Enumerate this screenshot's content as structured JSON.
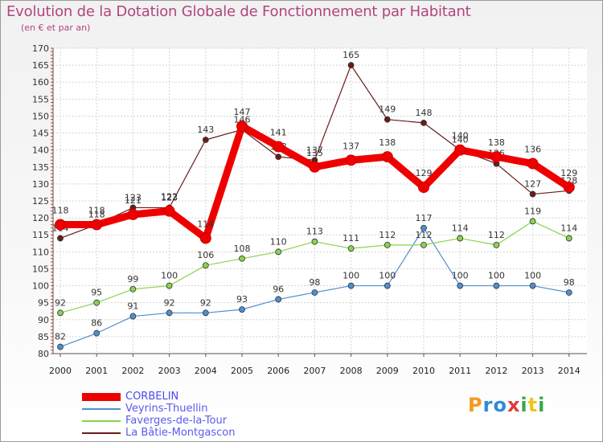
{
  "header": {
    "title": "Evolution de la Dotation Globale de Fonctionnement par Habitant",
    "subtitle": "(en € et par an)"
  },
  "logo": {
    "letters": [
      "P",
      "r",
      "o",
      "x",
      "i",
      "t",
      "i"
    ],
    "colors": [
      "#f39a1e",
      "#2e8bd6",
      "#2e8bd6",
      "#e23b3b",
      "#37a84a",
      "#f3c21e",
      "#37a84a"
    ]
  },
  "chart_data": {
    "type": "line",
    "title": "Evolution de la Dotation Globale de Fonctionnement par Habitant",
    "ylabel": "(en € et par an)",
    "xlabel": "",
    "categories": [
      "2000",
      "2001",
      "2002",
      "2003",
      "2004",
      "2005",
      "2006",
      "2007",
      "2008",
      "2009",
      "2010",
      "2011",
      "2012",
      "2013",
      "2014"
    ],
    "ylim": [
      80,
      170
    ],
    "yticks": [
      80,
      85,
      90,
      95,
      100,
      105,
      110,
      115,
      120,
      125,
      130,
      135,
      140,
      145,
      150,
      155,
      160,
      165,
      170
    ],
    "grid": true,
    "legend_position": "bottom-left",
    "series": [
      {
        "name": "CORBELIN",
        "color": "#ee0000",
        "values": [
          118,
          118,
          121,
          122,
          114,
          147,
          141,
          135,
          137,
          138,
          129,
          140,
          138,
          136,
          129
        ]
      },
      {
        "name": "Veyrins-Thuellin",
        "color": "#4f8fcf",
        "values": [
          82,
          86,
          91,
          92,
          92,
          93,
          96,
          98,
          100,
          100,
          117,
          100,
          100,
          100,
          98
        ]
      },
      {
        "name": "Faverges-de-la-Tour",
        "color": "#88d44e",
        "values": [
          92,
          95,
          99,
          100,
          106,
          108,
          110,
          113,
          111,
          112,
          112,
          114,
          112,
          119,
          114
        ]
      },
      {
        "name": "La Bâtie-Montgascon",
        "color": "#6b1b1b",
        "values": [
          114,
          118,
          123,
          123,
          143,
          146,
          138,
          137,
          165,
          149,
          148,
          140,
          136,
          127,
          128
        ]
      }
    ]
  }
}
